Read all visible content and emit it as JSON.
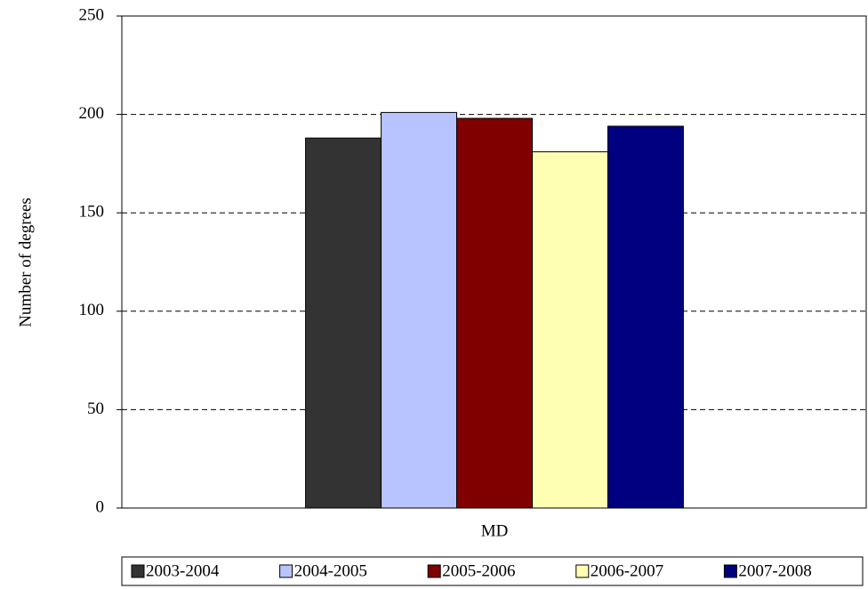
{
  "chart_data": {
    "type": "bar",
    "categories": [
      "MD"
    ],
    "ylabel": "Number of degrees",
    "series": [
      {
        "name": "2003-2004",
        "color": "#333333",
        "values": [
          188
        ]
      },
      {
        "name": "2004-2005",
        "color": "#b8c4ff",
        "values": [
          201
        ]
      },
      {
        "name": "2005-2006",
        "color": "#800000",
        "values": [
          198
        ]
      },
      {
        "name": "2006-2007",
        "color": "#ffffb3",
        "values": [
          181
        ]
      },
      {
        "name": "2007-2008",
        "color": "#000080",
        "values": [
          194
        ]
      }
    ],
    "ylim": [
      0,
      250
    ],
    "yticks": [
      0,
      50,
      100,
      150,
      200,
      250
    ],
    "grid": true,
    "legend": "bottom"
  }
}
